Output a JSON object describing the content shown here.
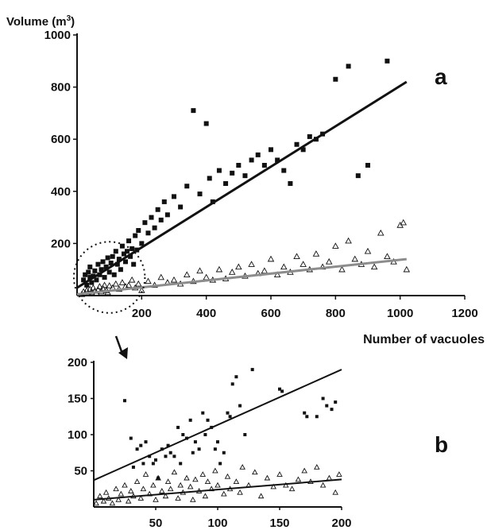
{
  "chart_data": [
    {
      "type": "scatter",
      "panel_label": "a",
      "ylabel": {
        "prefix": "Volume (m",
        "sup": "3",
        "suffix": ")"
      },
      "xlabel": "Number of vacuoles",
      "xlim": [
        0,
        1200
      ],
      "ylim": [
        0,
        1000
      ],
      "x_ticks": [
        200,
        400,
        600,
        800,
        1000,
        1200
      ],
      "y_ticks": [
        200,
        400,
        600,
        800,
        1000
      ],
      "grid": false,
      "series": [
        {
          "marker": "filled-square",
          "color": "#111111",
          "points": [
            [
              20,
              60
            ],
            [
              25,
              80
            ],
            [
              30,
              40
            ],
            [
              35,
              90
            ],
            [
              40,
              110
            ],
            [
              40,
              70
            ],
            [
              45,
              50
            ],
            [
              50,
              75
            ],
            [
              55,
              95
            ],
            [
              60,
              60
            ],
            [
              65,
              120
            ],
            [
              70,
              80
            ],
            [
              75,
              100
            ],
            [
              80,
              130
            ],
            [
              85,
              70
            ],
            [
              90,
              110
            ],
            [
              95,
              145
            ],
            [
              100,
              90
            ],
            [
              105,
              125
            ],
            [
              110,
              150
            ],
            [
              115,
              80
            ],
            [
              120,
              170
            ],
            [
              125,
              120
            ],
            [
              130,
              140
            ],
            [
              135,
              100
            ],
            [
              140,
              190
            ],
            [
              145,
              160
            ],
            [
              150,
              130
            ],
            [
              155,
              170
            ],
            [
              160,
              210
            ],
            [
              165,
              150
            ],
            [
              170,
              180
            ],
            [
              175,
              120
            ],
            [
              180,
              230
            ],
            [
              185,
              175
            ],
            [
              190,
              250
            ],
            [
              200,
              200
            ],
            [
              210,
              280
            ],
            [
              220,
              240
            ],
            [
              230,
              300
            ],
            [
              240,
              260
            ],
            [
              250,
              330
            ],
            [
              260,
              290
            ],
            [
              270,
              360
            ],
            [
              280,
              310
            ],
            [
              300,
              380
            ],
            [
              320,
              340
            ],
            [
              340,
              420
            ],
            [
              360,
              710
            ],
            [
              380,
              390
            ],
            [
              400,
              660
            ],
            [
              410,
              450
            ],
            [
              420,
              360
            ],
            [
              440,
              480
            ],
            [
              460,
              430
            ],
            [
              480,
              470
            ],
            [
              500,
              500
            ],
            [
              520,
              460
            ],
            [
              540,
              520
            ],
            [
              560,
              540
            ],
            [
              580,
              500
            ],
            [
              600,
              560
            ],
            [
              620,
              520
            ],
            [
              640,
              480
            ],
            [
              660,
              430
            ],
            [
              680,
              580
            ],
            [
              700,
              560
            ],
            [
              720,
              610
            ],
            [
              740,
              600
            ],
            [
              760,
              620
            ],
            [
              800,
              830
            ],
            [
              840,
              880
            ],
            [
              870,
              460
            ],
            [
              900,
              500
            ],
            [
              960,
              900
            ]
          ]
        },
        {
          "marker": "open-triangle",
          "color": "#111111",
          "points": [
            [
              15,
              5
            ],
            [
              20,
              15
            ],
            [
              25,
              10
            ],
            [
              30,
              20
            ],
            [
              35,
              8
            ],
            [
              40,
              25
            ],
            [
              45,
              12
            ],
            [
              50,
              30
            ],
            [
              55,
              18
            ],
            [
              60,
              10
            ],
            [
              65,
              22
            ],
            [
              70,
              35
            ],
            [
              75,
              15
            ],
            [
              80,
              28
            ],
            [
              85,
              40
            ],
            [
              90,
              20
            ],
            [
              95,
              12
            ],
            [
              100,
              38
            ],
            [
              110,
              30
            ],
            [
              120,
              45
            ],
            [
              130,
              25
            ],
            [
              140,
              50
            ],
            [
              150,
              35
            ],
            [
              160,
              40
            ],
            [
              170,
              60
            ],
            [
              180,
              30
            ],
            [
              190,
              45
            ],
            [
              200,
              20
            ],
            [
              220,
              55
            ],
            [
              240,
              40
            ],
            [
              260,
              70
            ],
            [
              280,
              50
            ],
            [
              300,
              60
            ],
            [
              320,
              45
            ],
            [
              340,
              80
            ],
            [
              360,
              55
            ],
            [
              380,
              95
            ],
            [
              400,
              70
            ],
            [
              420,
              60
            ],
            [
              440,
              100
            ],
            [
              460,
              65
            ],
            [
              480,
              90
            ],
            [
              500,
              110
            ],
            [
              520,
              75
            ],
            [
              540,
              120
            ],
            [
              560,
              85
            ],
            [
              580,
              95
            ],
            [
              600,
              140
            ],
            [
              620,
              80
            ],
            [
              640,
              110
            ],
            [
              660,
              90
            ],
            [
              680,
              150
            ],
            [
              700,
              120
            ],
            [
              720,
              100
            ],
            [
              740,
              160
            ],
            [
              760,
              110
            ],
            [
              780,
              130
            ],
            [
              800,
              190
            ],
            [
              820,
              100
            ],
            [
              840,
              210
            ],
            [
              860,
              140
            ],
            [
              880,
              120
            ],
            [
              900,
              170
            ],
            [
              920,
              110
            ],
            [
              940,
              240
            ],
            [
              960,
              150
            ],
            [
              980,
              130
            ],
            [
              1000,
              270
            ],
            [
              1010,
              280
            ],
            [
              1020,
              100
            ]
          ]
        }
      ],
      "fit_lines": [
        {
          "color": "#111111",
          "points": [
            [
              0,
              30
            ],
            [
              1020,
              820
            ]
          ]
        },
        {
          "color": "#8c8c8c",
          "points": [
            [
              0,
              5
            ],
            [
              1020,
              140
            ]
          ]
        }
      ],
      "annotation": {
        "type": "dotted-circle",
        "center": [
          100,
          70
        ],
        "radius_x_units": 110,
        "points_to": "b"
      }
    },
    {
      "type": "scatter",
      "panel_label": "b",
      "xlabel": "",
      "ylabel": "",
      "xlim": [
        0,
        200
      ],
      "ylim": [
        0,
        200
      ],
      "x_ticks": [
        50,
        100,
        150,
        200
      ],
      "y_ticks": [
        50,
        100,
        150,
        200
      ],
      "grid": false,
      "series": [
        {
          "marker": "filled-square",
          "color": "#111111",
          "points": [
            [
              25,
              147
            ],
            [
              30,
              95
            ],
            [
              32,
              55
            ],
            [
              35,
              80
            ],
            [
              38,
              85
            ],
            [
              40,
              60
            ],
            [
              42,
              90
            ],
            [
              45,
              70
            ],
            [
              48,
              60
            ],
            [
              50,
              65
            ],
            [
              52,
              40
            ],
            [
              55,
              80
            ],
            [
              58,
              70
            ],
            [
              60,
              85
            ],
            [
              62,
              75
            ],
            [
              65,
              70
            ],
            [
              68,
              110
            ],
            [
              70,
              60
            ],
            [
              72,
              100
            ],
            [
              75,
              95
            ],
            [
              78,
              120
            ],
            [
              80,
              75
            ],
            [
              82,
              90
            ],
            [
              85,
              80
            ],
            [
              88,
              130
            ],
            [
              90,
              100
            ],
            [
              92,
              120
            ],
            [
              95,
              110
            ],
            [
              98,
              80
            ],
            [
              100,
              90
            ],
            [
              102,
              60
            ],
            [
              105,
              75
            ],
            [
              108,
              130
            ],
            [
              110,
              125
            ],
            [
              112,
              170
            ],
            [
              115,
              180
            ],
            [
              118,
              140
            ],
            [
              122,
              100
            ],
            [
              128,
              190
            ],
            [
              150,
              163
            ],
            [
              152,
              160
            ],
            [
              170,
              130
            ],
            [
              172,
              125
            ],
            [
              180,
              125
            ],
            [
              185,
              150
            ],
            [
              188,
              140
            ],
            [
              192,
              135
            ],
            [
              195,
              145
            ]
          ]
        },
        {
          "marker": "open-triangle",
          "color": "#111111",
          "points": [
            [
              2,
              5
            ],
            [
              5,
              15
            ],
            [
              8,
              8
            ],
            [
              10,
              20
            ],
            [
              12,
              12
            ],
            [
              15,
              5
            ],
            [
              18,
              25
            ],
            [
              20,
              10
            ],
            [
              22,
              18
            ],
            [
              25,
              30
            ],
            [
              28,
              8
            ],
            [
              30,
              22
            ],
            [
              32,
              15
            ],
            [
              35,
              35
            ],
            [
              38,
              12
            ],
            [
              40,
              25
            ],
            [
              42,
              45
            ],
            [
              45,
              18
            ],
            [
              48,
              30
            ],
            [
              50,
              10
            ],
            [
              52,
              40
            ],
            [
              55,
              22
            ],
            [
              58,
              15
            ],
            [
              60,
              35
            ],
            [
              62,
              25
            ],
            [
              65,
              48
            ],
            [
              68,
              12
            ],
            [
              70,
              30
            ],
            [
              72,
              20
            ],
            [
              75,
              40
            ],
            [
              78,
              28
            ],
            [
              80,
              10
            ],
            [
              82,
              38
            ],
            [
              85,
              22
            ],
            [
              88,
              45
            ],
            [
              90,
              15
            ],
            [
              92,
              35
            ],
            [
              95,
              25
            ],
            [
              98,
              50
            ],
            [
              100,
              30
            ],
            [
              105,
              18
            ],
            [
              108,
              42
            ],
            [
              110,
              25
            ],
            [
              115,
              35
            ],
            [
              118,
              20
            ],
            [
              120,
              55
            ],
            [
              125,
              30
            ],
            [
              130,
              48
            ],
            [
              135,
              15
            ],
            [
              140,
              40
            ],
            [
              145,
              28
            ],
            [
              150,
              45
            ],
            [
              155,
              30
            ],
            [
              160,
              25
            ],
            [
              165,
              38
            ],
            [
              170,
              50
            ],
            [
              175,
              35
            ],
            [
              180,
              55
            ],
            [
              185,
              30
            ],
            [
              190,
              40
            ],
            [
              195,
              20
            ],
            [
              198,
              45
            ]
          ]
        }
      ],
      "fit_lines": [
        {
          "color": "#111111",
          "points": [
            [
              0,
              37
            ],
            [
              200,
              190
            ]
          ]
        },
        {
          "color": "#111111",
          "points": [
            [
              0,
              10
            ],
            [
              200,
              38
            ]
          ]
        }
      ]
    }
  ]
}
